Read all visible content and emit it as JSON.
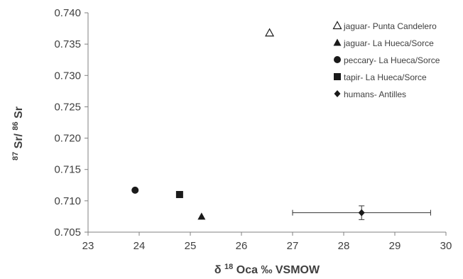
{
  "chart_data": {
    "type": "scatter",
    "xlabel": {
      "delta": "δ",
      "sup": "18",
      "rest": "Oca ‰ VSMOW"
    },
    "ylabel": {
      "sup1": "87",
      "mid": "Sr/",
      "sup2": "86",
      "end": "Sr"
    },
    "xlim": [
      23,
      30
    ],
    "ylim": [
      0.705,
      0.74
    ],
    "xticks": [
      "23",
      "24",
      "25",
      "26",
      "27",
      "28",
      "29",
      "30"
    ],
    "yticks": [
      "0.705",
      "0.710",
      "0.715",
      "0.720",
      "0.725",
      "0.730",
      "0.735",
      "0.740"
    ],
    "grid": false,
    "legend_position": "top-right",
    "series": [
      {
        "name": "jaguar- Punta Candelero",
        "marker": "triangle-open",
        "points": [
          {
            "x": 26.55,
            "y": 0.7368
          }
        ]
      },
      {
        "name": "jaguar- La Hueca/Sorce",
        "marker": "triangle",
        "points": [
          {
            "x": 25.22,
            "y": 0.7075
          }
        ]
      },
      {
        "name": "peccary- La Hueca/Sorce",
        "marker": "circle",
        "points": [
          {
            "x": 23.92,
            "y": 0.7117
          }
        ]
      },
      {
        "name": "tapir- La Hueca/Sorce",
        "marker": "square",
        "points": [
          {
            "x": 24.79,
            "y": 0.711
          }
        ]
      },
      {
        "name": "humans- Antilles",
        "marker": "diamond",
        "points": [
          {
            "x": 28.35,
            "y": 0.7081,
            "xerr": 1.35,
            "yerr": 0.0011
          }
        ]
      }
    ],
    "colors": {
      "marker": "#1a1a1a",
      "axis": "#808080",
      "text": "#404040"
    }
  }
}
